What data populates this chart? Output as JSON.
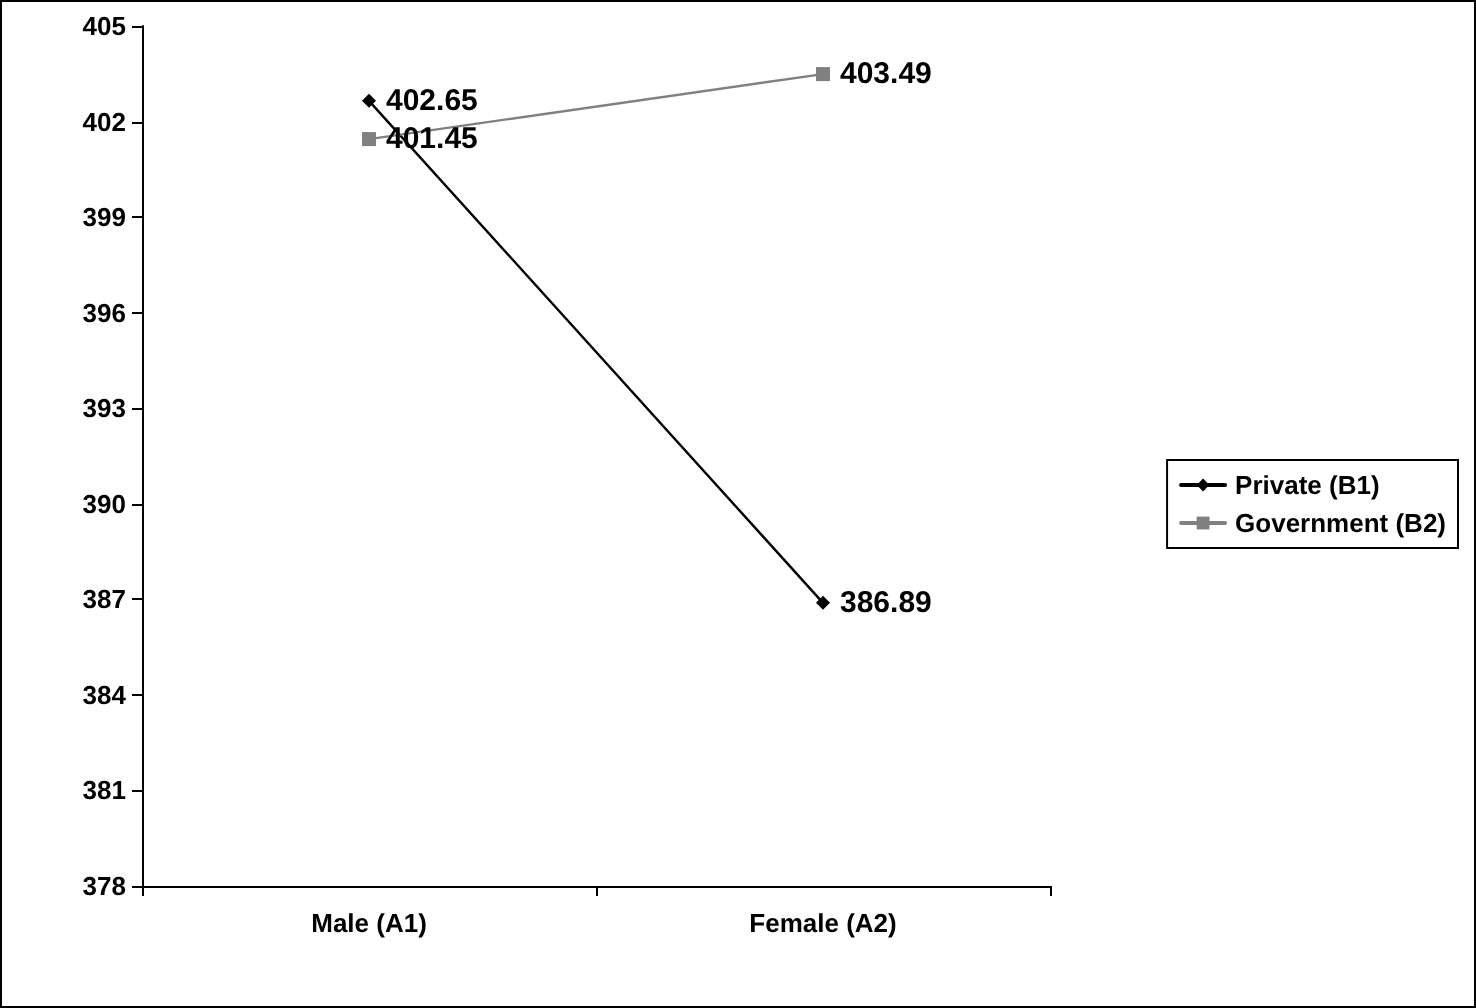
{
  "chart_data": {
    "type": "line",
    "categories": [
      "Male (A1)",
      "Female (A2)"
    ],
    "series": [
      {
        "name": "Private (B1)",
        "color": "#000000",
        "marker": "diamond",
        "values": [
          402.65,
          386.89
        ]
      },
      {
        "name": "Government (B2)",
        "color": "#808080",
        "marker": "square",
        "values": [
          401.45,
          403.49
        ]
      }
    ],
    "ylim": [
      378,
      405
    ],
    "yticks": [
      378,
      381,
      384,
      387,
      390,
      393,
      396,
      399,
      402,
      405
    ],
    "grid": false,
    "legend": "right",
    "data_labels": true,
    "line_style": "solid"
  }
}
